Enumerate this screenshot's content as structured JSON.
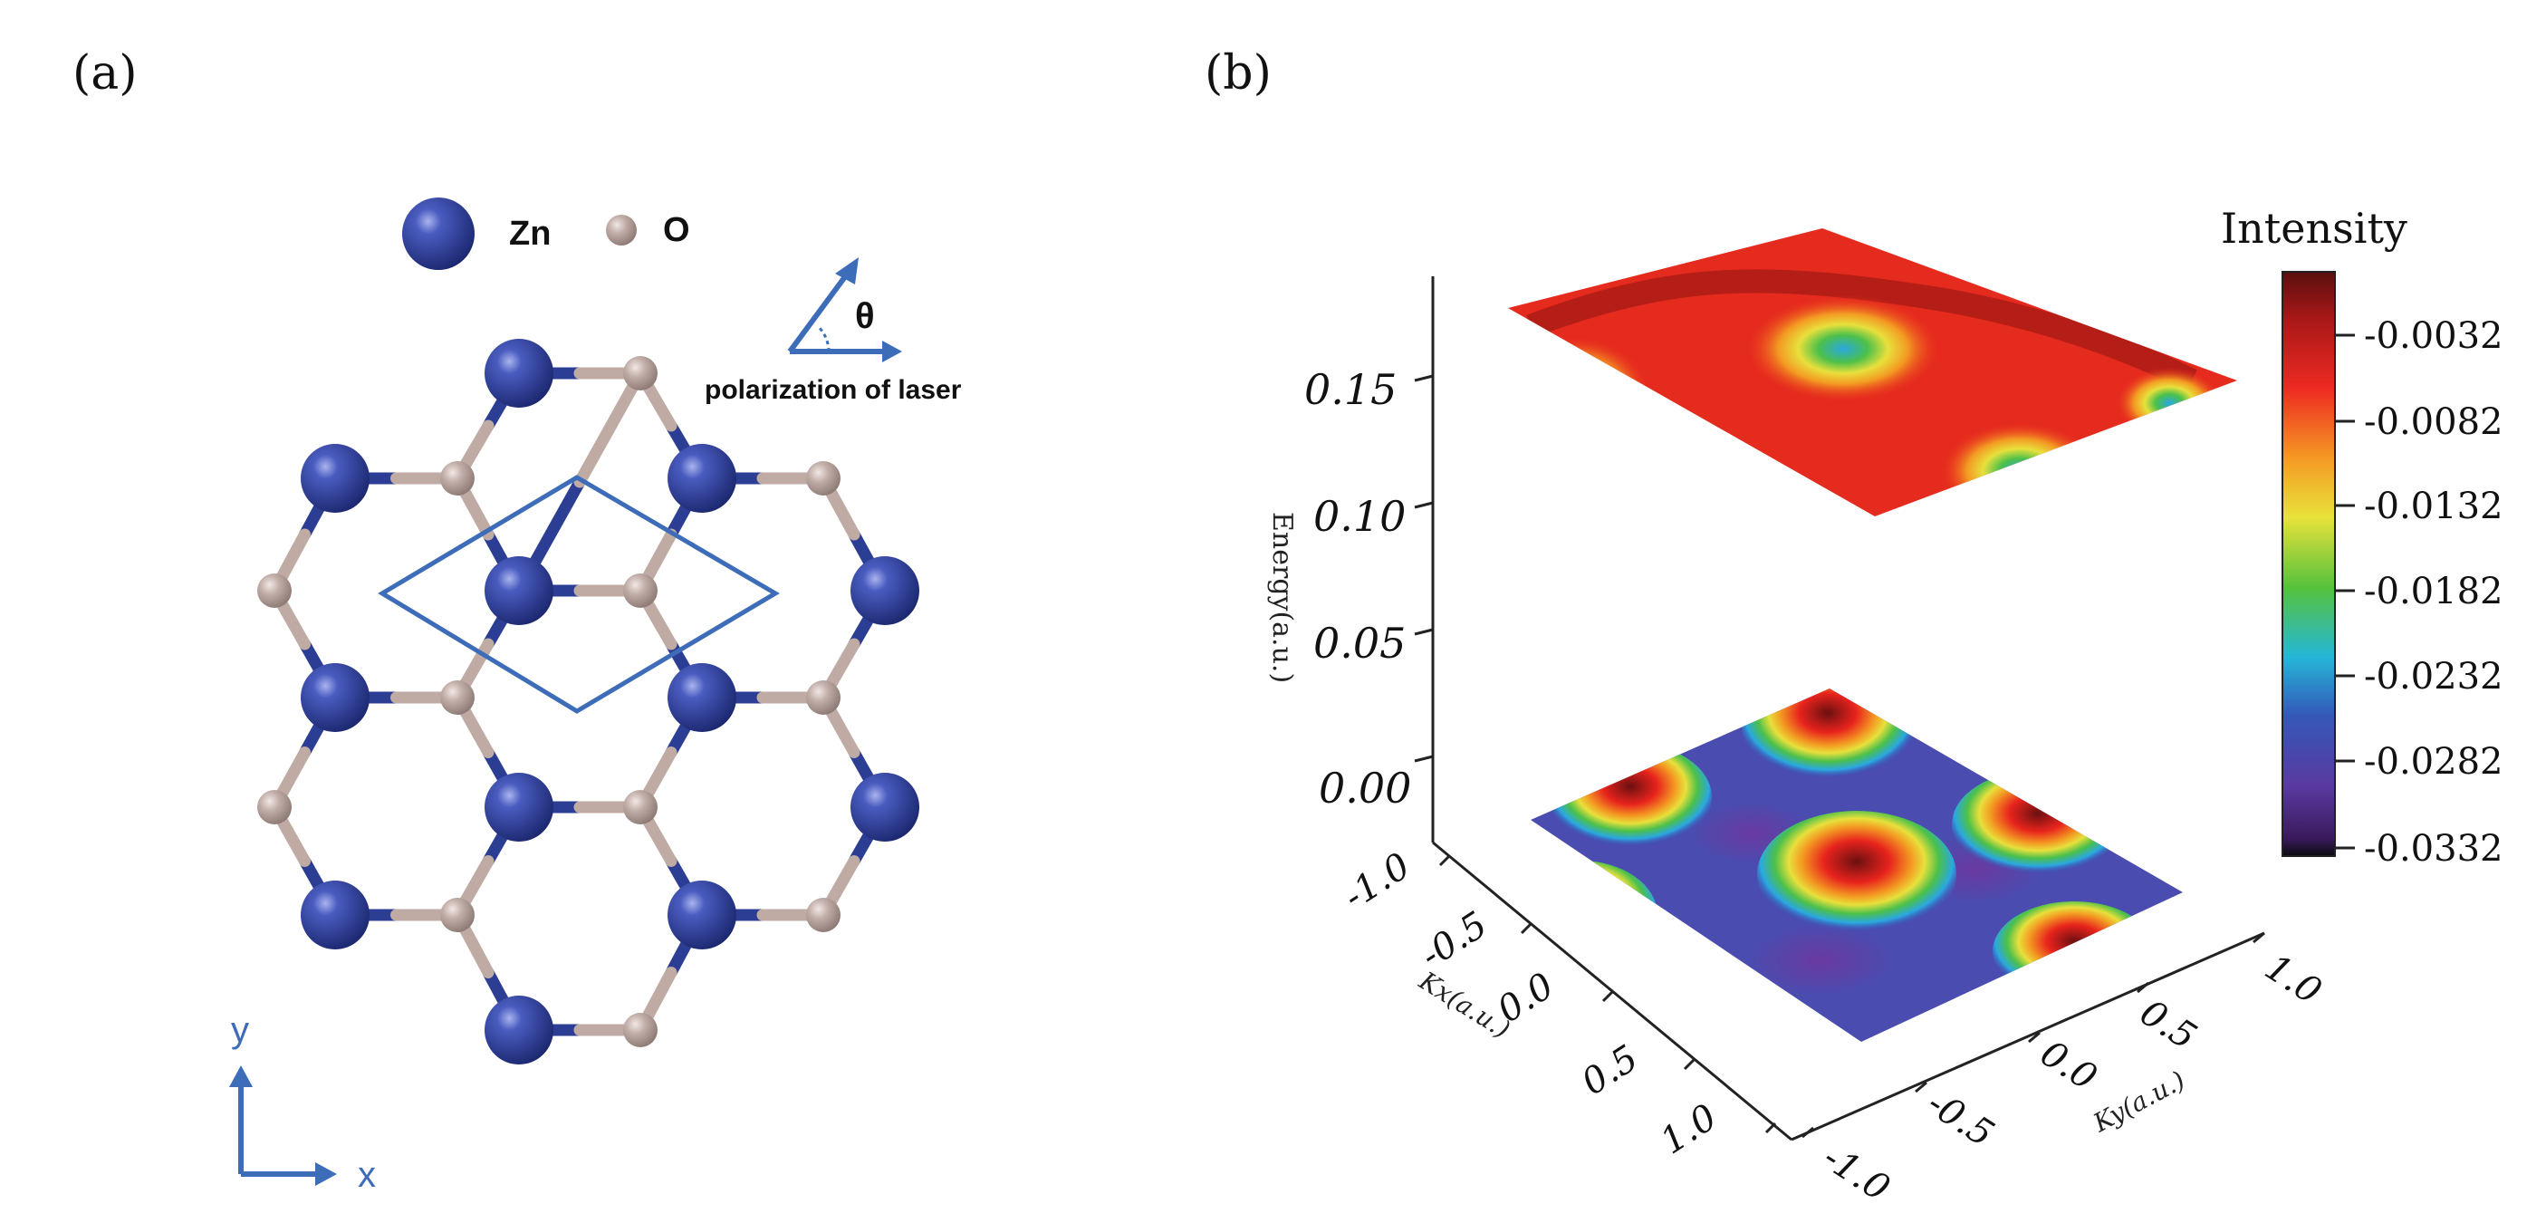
{
  "panel_a": {
    "label": "(a)",
    "legend": {
      "zn_label": "Zn",
      "o_label": "O"
    },
    "polarization": {
      "angle_symbol": "θ",
      "caption": "polarization of laser"
    },
    "axes": {
      "x_label": "x",
      "y_label": "y"
    }
  },
  "panel_b": {
    "label": "(b)",
    "energy_axis": {
      "label": "Energy(a.u.)",
      "ticks": [
        "0.15",
        "0.10",
        "0.05",
        "0.00"
      ]
    },
    "kx_axis": {
      "label": "Kx(a.u.)",
      "ticks": [
        "-1.0",
        "-0.5",
        "0.0",
        "0.5",
        "1.0"
      ]
    },
    "ky_axis": {
      "label": "Ky(a.u.)",
      "ticks": [
        "1.0",
        "0.5",
        "0.0",
        "-0.5",
        "-1.0"
      ]
    },
    "colorbar": {
      "title": "Intensity",
      "ticks": [
        "-0.0032",
        "-0.0082",
        "-0.0132",
        "-0.0182",
        "-0.0232",
        "-0.0282",
        "-0.0332"
      ]
    }
  },
  "colors": {
    "zn": "#2c3e94",
    "o": "#bfaaa4",
    "accent_blue": "#3d6cb8"
  }
}
